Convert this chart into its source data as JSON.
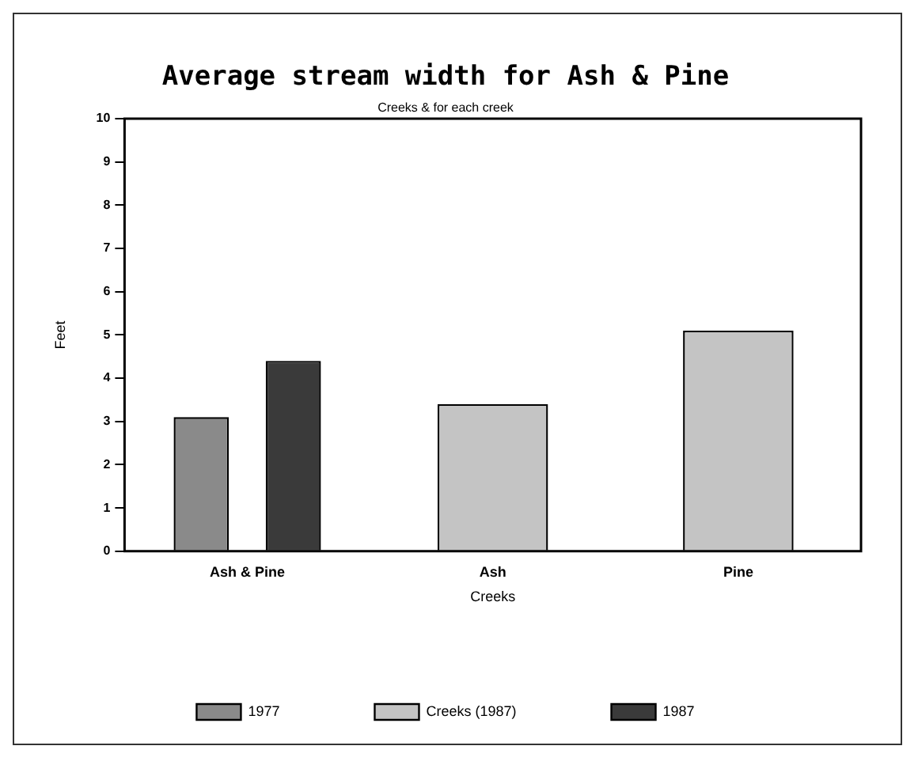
{
  "chart_data": {
    "type": "bar",
    "title": "Average stream width for Ash & Pine",
    "subtitle": "Creeks & for each creek",
    "xlabel": "Creeks",
    "ylabel": "Feet",
    "categories": [
      "Ash & Pine",
      "Ash",
      "Pine"
    ],
    "series": [
      {
        "name": "1977",
        "color": "#8a8a8a",
        "values": [
          3.1,
          null,
          null
        ]
      },
      {
        "name": "Creeks (1987)",
        "color": "#c4c4c4",
        "values": [
          null,
          3.4,
          5.1
        ]
      },
      {
        "name": "1987",
        "color": "#3a3a3a",
        "values": [
          4.4,
          null,
          null
        ]
      }
    ],
    "ylim": [
      0,
      10
    ],
    "yticks": [
      0,
      1,
      2,
      3,
      4,
      5,
      6,
      7,
      8,
      9,
      10
    ],
    "grid": false,
    "legend": "bottom"
  }
}
